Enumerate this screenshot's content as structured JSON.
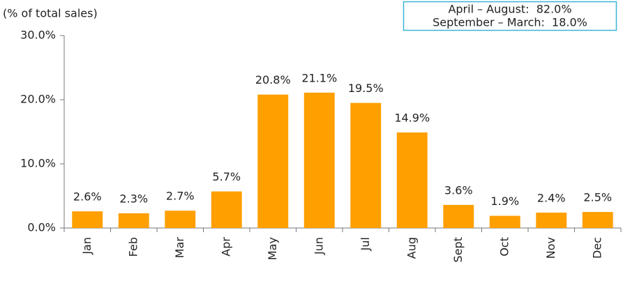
{
  "chart_data": {
    "type": "bar",
    "y_axis_label": "(% of total sales)",
    "annotations": [
      "April – August:  82.0%",
      "September – March:  18.0%"
    ],
    "categories": [
      "Jan",
      "Feb",
      "Mar",
      "Apr",
      "May",
      "Jun",
      "Jul",
      "Aug",
      "Sept",
      "Oct",
      "Nov",
      "Dec"
    ],
    "values": [
      2.6,
      2.3,
      2.7,
      5.7,
      20.8,
      21.1,
      19.5,
      14.9,
      3.6,
      1.9,
      2.4,
      2.5
    ],
    "value_labels": [
      "2.6%",
      "2.3%",
      "2.7%",
      "5.7%",
      "20.8%",
      "21.1%",
      "19.5%",
      "14.9%",
      "3.6%",
      "1.9%",
      "2.4%",
      "2.5%"
    ],
    "color": "#ff9f00",
    "ylim": [
      0,
      30
    ],
    "yticks": [
      {
        "value": 0,
        "label": "0.0%"
      },
      {
        "value": 10,
        "label": "10.0%"
      },
      {
        "value": 20,
        "label": "20.0%"
      },
      {
        "value": 30,
        "label": "30.0%"
      }
    ],
    "grid": false
  }
}
